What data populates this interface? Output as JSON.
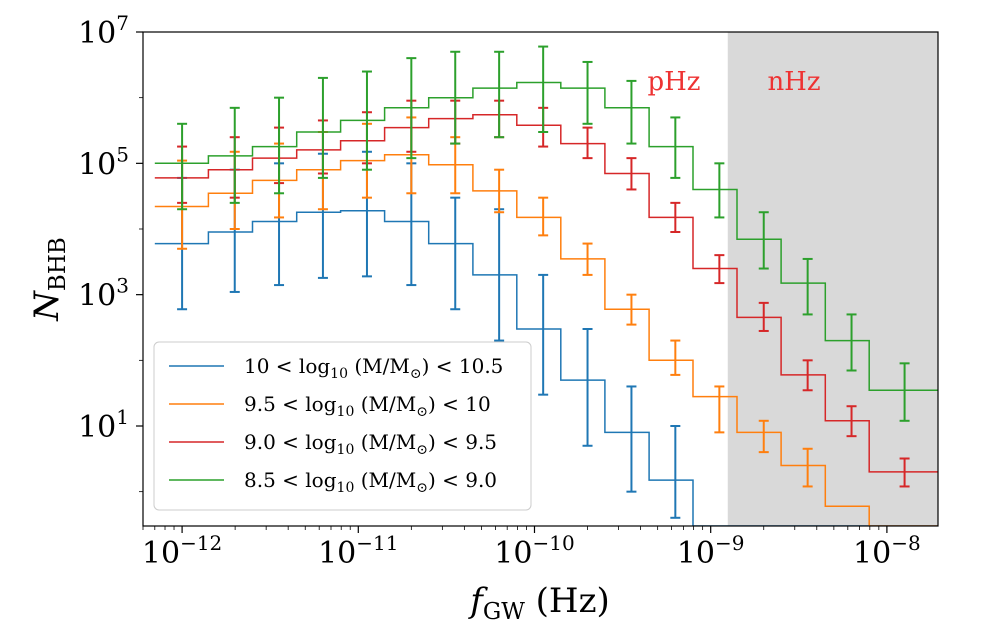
{
  "chart_data": {
    "type": "line",
    "x_scale": "log",
    "y_scale": "log",
    "xlim": [
      6e-13,
      1.95e-08
    ],
    "ylim": [
      0.3,
      10000000.0
    ],
    "xlabel": {
      "main": "f",
      "sub": "GW",
      "unit": " (Hz)"
    },
    "ylabel": {
      "main": "N",
      "sub": "BHB"
    },
    "x_ticks": [
      {
        "value": 1e-12,
        "base": "10",
        "exp": "−12"
      },
      {
        "value": 1e-11,
        "base": "10",
        "exp": "−11"
      },
      {
        "value": 1e-10,
        "base": "10",
        "exp": "−10"
      },
      {
        "value": 1e-09,
        "base": "10",
        "exp": "−9"
      },
      {
        "value": 1e-08,
        "base": "10",
        "exp": "−8"
      }
    ],
    "y_ticks": [
      {
        "value": 10,
        "base": "10",
        "exp": "1"
      },
      {
        "value": 1000,
        "base": "10",
        "exp": "3"
      },
      {
        "value": 100000,
        "base": "10",
        "exp": "5"
      },
      {
        "value": 10000000,
        "base": "10",
        "exp": "7"
      }
    ],
    "shaded_region": {
      "x_from": 1.25e-09,
      "x_to": 1.95e-08,
      "color": "#d9d9d9"
    },
    "annotations": [
      {
        "text": "pHz",
        "color": "#ee3333"
      },
      {
        "text": "nHz",
        "color": "#ee3333"
      }
    ],
    "bin_edges": [
      7e-13,
      1.41e-12,
      2.51e-12,
      4.47e-12,
      7.94e-12,
      1.41e-11,
      2.51e-11,
      4.47e-11,
      7.94e-11,
      1.41e-10,
      2.51e-10,
      4.47e-10,
      7.94e-10,
      1.41e-09,
      2.51e-09,
      4.47e-09,
      7.94e-09,
      1.41e-08,
      1.95e-08
    ],
    "x_centers": [
      1e-12,
      1.99e-12,
      3.55e-12,
      6.3e-12,
      1.12e-11,
      2e-11,
      3.55e-11,
      6.3e-11,
      1.12e-10,
      2e-10,
      3.55e-10,
      6.3e-10,
      1.12e-09,
      2e-09,
      3.55e-09,
      6.3e-09,
      1.26e-08
    ],
    "series": [
      {
        "name": "10 < log10 (M/M⊙) < 10.5",
        "color": "#1f77b4",
        "step_values": [
          6000,
          9000,
          13000,
          18000,
          19000,
          13000,
          6000,
          2000,
          300,
          50,
          8,
          1.5,
          0.3,
          0.3,
          0.3,
          0.3,
          0.3,
          0.3
        ],
        "points": [
          {
            "x": 1e-12,
            "y": 6000,
            "lo": 600,
            "hi": 60000
          },
          {
            "x": 1.99e-12,
            "y": 9000,
            "lo": 1100,
            "hi": 80000
          },
          {
            "x": 3.55e-12,
            "y": 13000,
            "lo": 1400,
            "hi": 100000
          },
          {
            "x": 6.3e-12,
            "y": 18000,
            "lo": 1800,
            "hi": 140000
          },
          {
            "x": 1.12e-11,
            "y": 19000,
            "lo": 1900,
            "hi": 150000
          },
          {
            "x": 2e-11,
            "y": 13000,
            "lo": 1400,
            "hi": 100000
          },
          {
            "x": 3.55e-11,
            "y": 6000,
            "lo": 600,
            "hi": 30000
          },
          {
            "x": 6.3e-11,
            "y": 2000,
            "lo": 200,
            "hi": 20000
          },
          {
            "x": 1.12e-10,
            "y": 300,
            "lo": 30,
            "hi": 2000
          },
          {
            "x": 2e-10,
            "y": 50,
            "lo": 5,
            "hi": 300
          },
          {
            "x": 3.55e-10,
            "y": 8,
            "lo": 1,
            "hi": 40
          },
          {
            "x": 6.3e-10,
            "y": 1.5,
            "lo": 0.4,
            "hi": 10
          }
        ]
      },
      {
        "name": "9.5 < log10 (M/M⊙) < 10",
        "color": "#ff7f0e",
        "step_values": [
          22000,
          35000,
          55000,
          80000,
          110000,
          135000,
          95000,
          38000,
          15000,
          3500,
          600,
          100,
          28,
          8,
          2.5,
          0.6,
          0.3,
          0.3
        ],
        "points": [
          {
            "x": 1e-12,
            "y": 22000,
            "lo": 5000,
            "hi": 110000
          },
          {
            "x": 1.99e-12,
            "y": 35000,
            "lo": 10000,
            "hi": 150000
          },
          {
            "x": 3.55e-12,
            "y": 55000,
            "lo": 15000,
            "hi": 200000
          },
          {
            "x": 6.3e-12,
            "y": 80000,
            "lo": 20000,
            "hi": 300000
          },
          {
            "x": 1.12e-11,
            "y": 110000,
            "lo": 30000,
            "hi": 400000
          },
          {
            "x": 2e-11,
            "y": 135000,
            "lo": 35000,
            "hi": 500000
          },
          {
            "x": 3.55e-11,
            "y": 95000,
            "lo": 35000,
            "hi": 250000
          },
          {
            "x": 6.3e-11,
            "y": 38000,
            "lo": 18000,
            "hi": 80000
          },
          {
            "x": 1.12e-10,
            "y": 15000,
            "lo": 8000,
            "hi": 30000
          },
          {
            "x": 2e-10,
            "y": 3500,
            "lo": 2000,
            "hi": 6000
          },
          {
            "x": 3.55e-10,
            "y": 600,
            "lo": 350,
            "hi": 1000
          },
          {
            "x": 6.3e-10,
            "y": 100,
            "lo": 60,
            "hi": 200
          },
          {
            "x": 1.12e-09,
            "y": 28,
            "lo": 8,
            "hi": 40
          },
          {
            "x": 2e-09,
            "y": 8,
            "lo": 4,
            "hi": 12
          },
          {
            "x": 3.55e-09,
            "y": 2.5,
            "lo": 1.2,
            "hi": 4.5
          }
        ]
      },
      {
        "name": "9.0 < log10 (M/M⊙) < 9.5",
        "color": "#d62728",
        "step_values": [
          60000,
          80000,
          120000,
          160000,
          220000,
          350000,
          480000,
          550000,
          380000,
          200000,
          70000,
          15000,
          2500,
          450,
          60,
          12,
          2,
          2
        ],
        "points": [
          {
            "x": 1e-12,
            "y": 60000,
            "lo": 25000,
            "hi": 180000
          },
          {
            "x": 1.99e-12,
            "y": 80000,
            "lo": 30000,
            "hi": 250000
          },
          {
            "x": 3.55e-12,
            "y": 120000,
            "lo": 50000,
            "hi": 350000
          },
          {
            "x": 6.3e-12,
            "y": 160000,
            "lo": 70000,
            "hi": 450000
          },
          {
            "x": 1.12e-11,
            "y": 220000,
            "lo": 100000,
            "hi": 600000
          },
          {
            "x": 2e-11,
            "y": 350000,
            "lo": 150000,
            "hi": 900000
          },
          {
            "x": 3.55e-11,
            "y": 480000,
            "lo": 200000,
            "hi": 900000
          },
          {
            "x": 6.3e-11,
            "y": 550000,
            "lo": 250000,
            "hi": 900000
          },
          {
            "x": 1.12e-10,
            "y": 380000,
            "lo": 180000,
            "hi": 700000
          },
          {
            "x": 2e-10,
            "y": 200000,
            "lo": 120000,
            "hi": 350000
          },
          {
            "x": 3.55e-10,
            "y": 70000,
            "lo": 40000,
            "hi": 120000
          },
          {
            "x": 6.3e-10,
            "y": 15000,
            "lo": 9000,
            "hi": 25000
          },
          {
            "x": 1.12e-09,
            "y": 2500,
            "lo": 1500,
            "hi": 4000
          },
          {
            "x": 2e-09,
            "y": 450,
            "lo": 280,
            "hi": 750
          },
          {
            "x": 3.55e-09,
            "y": 60,
            "lo": 35,
            "hi": 100
          },
          {
            "x": 6.3e-09,
            "y": 12,
            "lo": 7,
            "hi": 20
          },
          {
            "x": 1.26e-08,
            "y": 2,
            "lo": 1.2,
            "hi": 3.2
          }
        ]
      },
      {
        "name": "8.5 < log10 (M/M⊙) < 9.0",
        "color": "#2ca02c",
        "step_values": [
          100000,
          130000,
          180000,
          300000,
          450000,
          700000,
          1000000,
          1400000,
          1700000,
          1400000,
          700000,
          180000,
          40000,
          7000,
          1500,
          200,
          35,
          35
        ],
        "points": [
          {
            "x": 1e-12,
            "y": 100000,
            "lo": 20000,
            "hi": 400000
          },
          {
            "x": 1.99e-12,
            "y": 130000,
            "lo": 25000,
            "hi": 700000
          },
          {
            "x": 3.55e-12,
            "y": 180000,
            "lo": 35000,
            "hi": 1000000
          },
          {
            "x": 6.3e-12,
            "y": 300000,
            "lo": 60000,
            "hi": 2000000
          },
          {
            "x": 1.12e-11,
            "y": 450000,
            "lo": 80000,
            "hi": 2500000
          },
          {
            "x": 2e-11,
            "y": 700000,
            "lo": 120000,
            "hi": 4000000
          },
          {
            "x": 3.55e-11,
            "y": 1000000,
            "lo": 200000,
            "hi": 5000000
          },
          {
            "x": 6.3e-11,
            "y": 1400000,
            "lo": 250000,
            "hi": 5000000
          },
          {
            "x": 1.12e-10,
            "y": 1700000,
            "lo": 300000,
            "hi": 6000000
          },
          {
            "x": 2e-10,
            "y": 1400000,
            "lo": 400000,
            "hi": 3500000
          },
          {
            "x": 3.55e-10,
            "y": 700000,
            "lo": 200000,
            "hi": 1800000
          },
          {
            "x": 6.3e-10,
            "y": 180000,
            "lo": 60000,
            "hi": 500000
          },
          {
            "x": 1.12e-09,
            "y": 40000,
            "lo": 15000,
            "hi": 100000
          },
          {
            "x": 2e-09,
            "y": 7000,
            "lo": 2500,
            "hi": 18000
          },
          {
            "x": 3.55e-09,
            "y": 1500,
            "lo": 500,
            "hi": 3500
          },
          {
            "x": 6.3e-09,
            "y": 200,
            "lo": 70,
            "hi": 500
          },
          {
            "x": 1.26e-08,
            "y": 35,
            "lo": 12,
            "hi": 90
          }
        ]
      }
    ],
    "legend": {
      "placement": "lower-left",
      "entries": [
        {
          "lhs": "10 < log",
          "sub": "10",
          "mid": " (M/M",
          "msub": "⊙",
          "rhs": ") < 10.5",
          "color": "#1f77b4"
        },
        {
          "lhs": "9.5 < log",
          "sub": "10",
          "mid": " (M/M",
          "msub": "⊙",
          "rhs": ") < 10",
          "color": "#ff7f0e"
        },
        {
          "lhs": "9.0 < log",
          "sub": "10",
          "mid": " (M/M",
          "msub": "⊙",
          "rhs": ") < 9.5",
          "color": "#d62728"
        },
        {
          "lhs": "8.5 < log",
          "sub": "10",
          "mid": " (M/M",
          "msub": "⊙",
          "rhs": ") < 9.0",
          "color": "#2ca02c"
        }
      ]
    }
  }
}
